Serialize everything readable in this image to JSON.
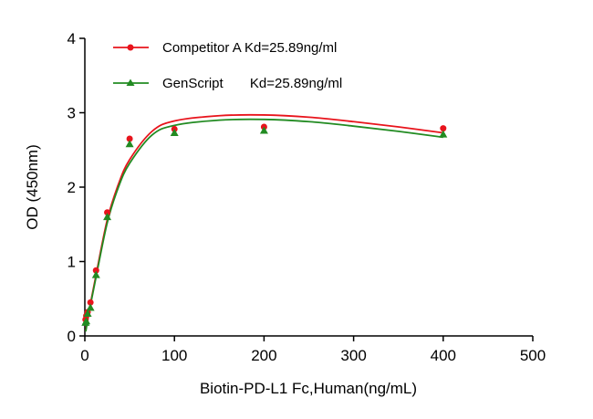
{
  "chart_data": {
    "type": "scatter",
    "title": "",
    "xlabel": "Biotin-PD-L1 Fc,Human(ng/mL)",
    "ylabel": "OD (450nm)",
    "xlim": [
      0,
      500
    ],
    "ylim": [
      0,
      4
    ],
    "xticks": [
      0,
      100,
      200,
      300,
      400,
      500
    ],
    "yticks": [
      0,
      1,
      2,
      3,
      4
    ],
    "grid": false,
    "legend_position": "top-left",
    "series": [
      {
        "name": "Competitor A Kd=25.89ng/ml",
        "color": "#e8141c",
        "marker": "circle",
        "x": [
          0.78,
          1.56,
          3.125,
          6.25,
          12.5,
          25,
          50,
          100,
          200,
          400
        ],
        "y": [
          0.22,
          0.27,
          0.32,
          0.45,
          0.88,
          1.66,
          2.65,
          2.78,
          2.81,
          2.79
        ],
        "fit": [
          [
            1,
            0.07
          ],
          [
            3,
            0.22
          ],
          [
            6,
            0.42
          ],
          [
            12.5,
            0.82
          ],
          [
            25,
            1.56
          ],
          [
            37.5,
            2.04
          ],
          [
            50,
            2.37
          ],
          [
            75,
            2.75
          ],
          [
            100,
            2.89
          ],
          [
            150,
            2.96
          ],
          [
            200,
            2.97
          ],
          [
            250,
            2.94
          ],
          [
            300,
            2.88
          ],
          [
            350,
            2.81
          ],
          [
            400,
            2.73
          ]
        ]
      },
      {
        "name": "GenScript       Kd=25.89ng/ml",
        "color": "#228b22",
        "marker": "triangle",
        "x": [
          0.78,
          1.56,
          3.125,
          6.25,
          12.5,
          25,
          50,
          100,
          200,
          400
        ],
        "y": [
          0.18,
          0.2,
          0.3,
          0.38,
          0.82,
          1.6,
          2.58,
          2.73,
          2.76,
          2.71
        ],
        "fit": [
          [
            1,
            0.06
          ],
          [
            3,
            0.2
          ],
          [
            6,
            0.4
          ],
          [
            12.5,
            0.79
          ],
          [
            25,
            1.52
          ],
          [
            37.5,
            2.0
          ],
          [
            50,
            2.32
          ],
          [
            75,
            2.7
          ],
          [
            100,
            2.83
          ],
          [
            150,
            2.9
          ],
          [
            200,
            2.91
          ],
          [
            250,
            2.88
          ],
          [
            300,
            2.82
          ],
          [
            350,
            2.75
          ],
          [
            400,
            2.67
          ]
        ]
      }
    ]
  }
}
